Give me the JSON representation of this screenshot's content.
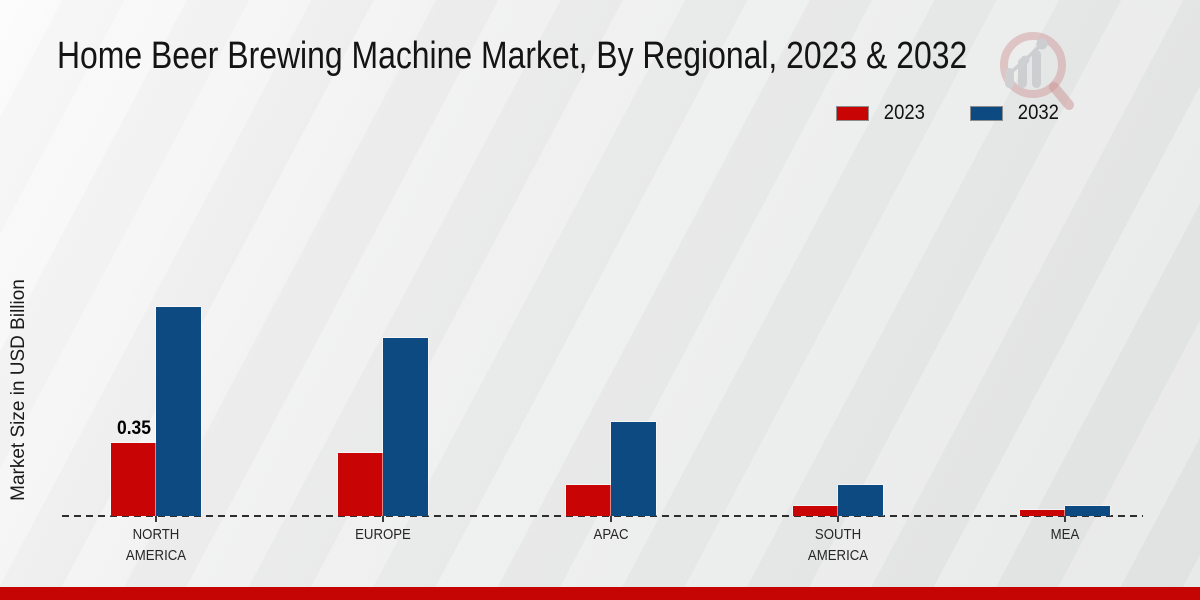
{
  "title": "Home Beer Brewing Machine Market, By Regional, 2023 & 2032",
  "y_axis_label": "Market Size in USD Billion",
  "legend": [
    {
      "label": "2023",
      "color": "#c80404"
    },
    {
      "label": "2032",
      "color": "#0d4a82"
    }
  ],
  "footer_bar_color": "#c50404",
  "logo": {
    "name": "market-research-future-logo",
    "ring_color": "rgba(201,134,134,0.5)",
    "bars_color": "#c7c9cc"
  },
  "chart_data": {
    "type": "bar",
    "title": "Home Beer Brewing Machine Market, By Regional, 2023 & 2032",
    "xlabel": "",
    "ylabel": "Market Size in USD Billion",
    "categories": [
      "NORTH AMERICA",
      "EUROPE",
      "APAC",
      "SOUTH AMERICA",
      "MEA"
    ],
    "series": [
      {
        "name": "2023",
        "color": "#c80404",
        "values": [
          0.35,
          0.3,
          0.15,
          0.05,
          0.03
        ],
        "bar_labels": [
          "0.35",
          "",
          "",
          "",
          ""
        ]
      },
      {
        "name": "2032",
        "color": "#0d4a82",
        "values": [
          1.0,
          0.85,
          0.45,
          0.15,
          0.05
        ],
        "bar_labels": [
          "",
          "",
          "",
          "",
          ""
        ]
      }
    ],
    "ylim": [
      0,
      1.1
    ],
    "grid": false,
    "baseline_style": "dashed",
    "legend_position": "top-right",
    "y_axis_ticks_visible": false
  }
}
